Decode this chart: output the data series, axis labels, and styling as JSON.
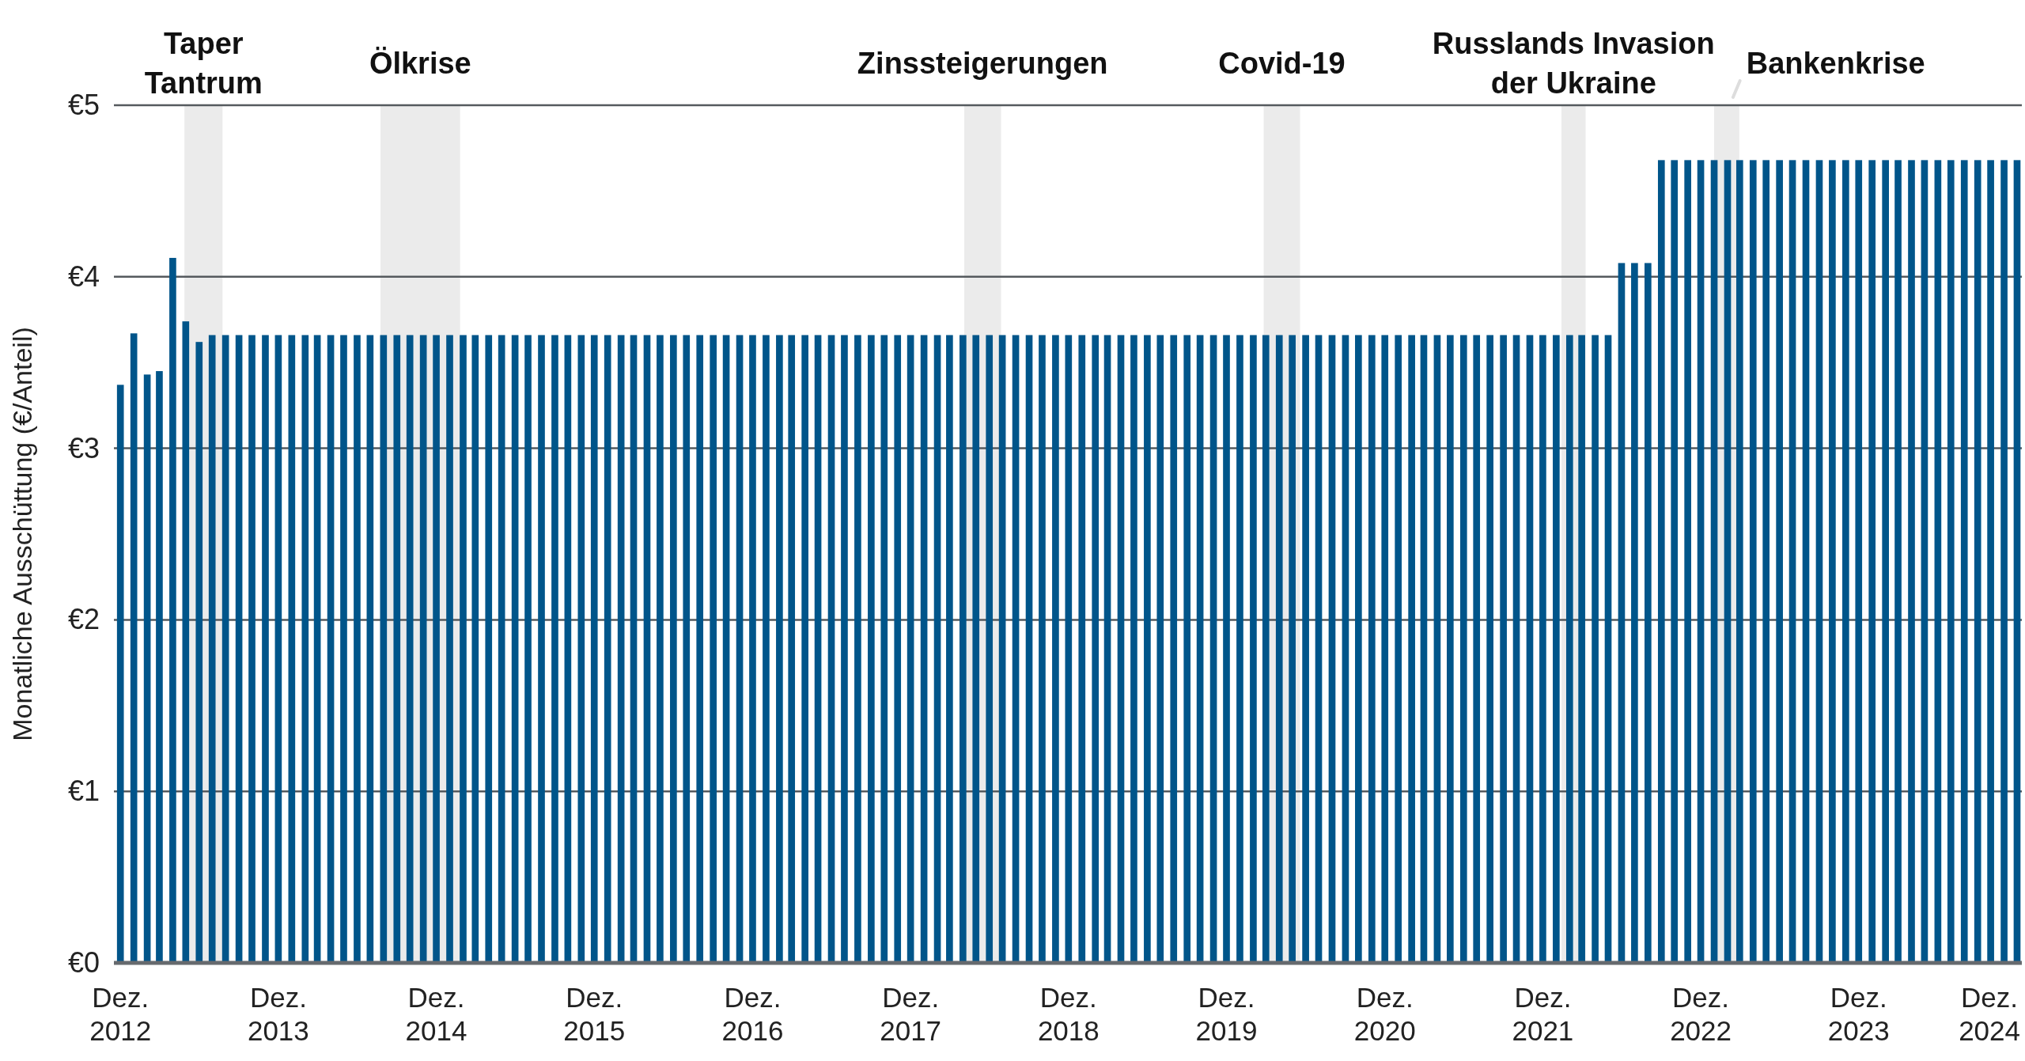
{
  "chart_data": {
    "type": "bar",
    "ylabel": "Monatliche Ausschüttung (€/Anteil)",
    "x": [
      "2012-12",
      "2013-01",
      "2013-02",
      "2013-03",
      "2013-04",
      "2013-05",
      "2013-06",
      "2013-07",
      "2013-08",
      "2013-09",
      "2013-10",
      "2013-11",
      "2013-12",
      "2014-01",
      "2014-02",
      "2014-03",
      "2014-04",
      "2014-05",
      "2014-06",
      "2014-07",
      "2014-08",
      "2014-09",
      "2014-10",
      "2014-11",
      "2014-12",
      "2015-01",
      "2015-02",
      "2015-03",
      "2015-04",
      "2015-05",
      "2015-06",
      "2015-07",
      "2015-08",
      "2015-09",
      "2015-10",
      "2015-11",
      "2015-12",
      "2016-01",
      "2016-02",
      "2016-03",
      "2016-04",
      "2016-05",
      "2016-06",
      "2016-07",
      "2016-08",
      "2016-09",
      "2016-10",
      "2016-11",
      "2016-12",
      "2017-01",
      "2017-02",
      "2017-03",
      "2017-04",
      "2017-05",
      "2017-06",
      "2017-07",
      "2017-08",
      "2017-09",
      "2017-10",
      "2017-11",
      "2017-12",
      "2018-01",
      "2018-02",
      "2018-03",
      "2018-04",
      "2018-05",
      "2018-06",
      "2018-07",
      "2018-08",
      "2018-09",
      "2018-10",
      "2018-11",
      "2018-12",
      "2019-01",
      "2019-02",
      "2019-03",
      "2019-04",
      "2019-05",
      "2019-06",
      "2019-07",
      "2019-08",
      "2019-09",
      "2019-10",
      "2019-11",
      "2019-12",
      "2020-01",
      "2020-02",
      "2020-03",
      "2020-04",
      "2020-05",
      "2020-06",
      "2020-07",
      "2020-08",
      "2020-09",
      "2020-10",
      "2020-11",
      "2020-12",
      "2021-01",
      "2021-02",
      "2021-03",
      "2021-04",
      "2021-05",
      "2021-06",
      "2021-07",
      "2021-08",
      "2021-09",
      "2021-10",
      "2021-11",
      "2021-12",
      "2022-01",
      "2022-02",
      "2022-03",
      "2022-04",
      "2022-05",
      "2022-06",
      "2022-07",
      "2022-08",
      "2022-09",
      "2022-10",
      "2022-11",
      "2022-12",
      "2023-01",
      "2023-02",
      "2023-03",
      "2023-04",
      "2023-05",
      "2023-06",
      "2023-07",
      "2023-08",
      "2023-09",
      "2023-10",
      "2023-11",
      "2023-12",
      "2024-01",
      "2024-02",
      "2024-03",
      "2024-04",
      "2024-05",
      "2024-06",
      "2024-07",
      "2024-08",
      "2024-09",
      "2024-10",
      "2024-11",
      "2024-12"
    ],
    "values": [
      3.37,
      3.67,
      3.43,
      3.45,
      4.11,
      3.74,
      3.62,
      3.66,
      3.66,
      3.66,
      3.66,
      3.66,
      3.66,
      3.66,
      3.66,
      3.66,
      3.66,
      3.66,
      3.66,
      3.66,
      3.66,
      3.66,
      3.66,
      3.66,
      3.66,
      3.66,
      3.66,
      3.66,
      3.66,
      3.66,
      3.66,
      3.66,
      3.66,
      3.66,
      3.66,
      3.66,
      3.66,
      3.66,
      3.66,
      3.66,
      3.66,
      3.66,
      3.66,
      3.66,
      3.66,
      3.66,
      3.66,
      3.66,
      3.66,
      3.66,
      3.66,
      3.66,
      3.66,
      3.66,
      3.66,
      3.66,
      3.66,
      3.66,
      3.66,
      3.66,
      3.66,
      3.66,
      3.66,
      3.66,
      3.66,
      3.66,
      3.66,
      3.66,
      3.66,
      3.66,
      3.66,
      3.66,
      3.66,
      3.66,
      3.66,
      3.66,
      3.66,
      3.66,
      3.66,
      3.66,
      3.66,
      3.66,
      3.66,
      3.66,
      3.66,
      3.66,
      3.66,
      3.66,
      3.66,
      3.66,
      3.66,
      3.66,
      3.66,
      3.66,
      3.66,
      3.66,
      3.66,
      3.66,
      3.66,
      3.66,
      3.66,
      3.66,
      3.66,
      3.66,
      3.66,
      3.66,
      3.66,
      3.66,
      3.66,
      3.66,
      3.66,
      3.66,
      3.66,
      3.66,
      4.08,
      4.08,
      4.08,
      4.68,
      4.68,
      4.68,
      4.68,
      4.68,
      4.68,
      4.68,
      4.68,
      4.68,
      4.68,
      4.68,
      4.68,
      4.68,
      4.68,
      4.68,
      4.68,
      4.68,
      4.68,
      4.68,
      4.68,
      4.68,
      4.68,
      4.68,
      4.68,
      4.68,
      4.68,
      4.68,
      4.68
    ],
    "color": "#00558a",
    "xlim": [
      "2012-11-16",
      "2024-12-12"
    ],
    "xticks": [
      {
        "value": "2012-12",
        "label": "Dez.\n2012"
      },
      {
        "value": "2013-12",
        "label": "Dez.\n2013"
      },
      {
        "value": "2014-12",
        "label": "Dez.\n2014"
      },
      {
        "value": "2015-12",
        "label": "Dez.\n2015"
      },
      {
        "value": "2016-12",
        "label": "Dez.\n2016"
      },
      {
        "value": "2017-12",
        "label": "Dez.\n2017"
      },
      {
        "value": "2018-12",
        "label": "Dez.\n2018"
      },
      {
        "value": "2019-12",
        "label": "Dez.\n2019"
      },
      {
        "value": "2020-12",
        "label": "Dez.\n2020"
      },
      {
        "value": "2021-12",
        "label": "Dez.\n2021"
      },
      {
        "value": "2022-12",
        "label": "Dez.\n2022"
      },
      {
        "value": "2023-12",
        "label": "Dez.\n2023"
      },
      {
        "value": "2024-12",
        "label": "Dez.\n2024"
      }
    ],
    "ylim": [
      0,
      5
    ],
    "yticks": [
      {
        "value": 0,
        "label": "€0"
      },
      {
        "value": 1,
        "label": "€1"
      },
      {
        "value": 2,
        "label": "€2"
      },
      {
        "value": 3,
        "label": "€3"
      },
      {
        "value": 4,
        "label": "€4"
      },
      {
        "value": 5,
        "label": "€5"
      }
    ],
    "grid": "y",
    "bands": [
      {
        "axis": "x",
        "from": "2013-04-28",
        "to": "2013-07-25",
        "label": "Taper\nTantrum",
        "color": "#ebebeb"
      },
      {
        "axis": "x",
        "from": "2014-07-25",
        "to": "2015-01-25",
        "label": "Ölkrise",
        "color": "#ebebeb"
      },
      {
        "axis": "x",
        "from": "2018-04-04",
        "to": "2018-06-28",
        "label": "Zinssteigerungen",
        "color": "#ebebeb"
      },
      {
        "axis": "x",
        "from": "2020-02-25",
        "to": "2020-05-19",
        "label": "Covid-19",
        "color": "#ebebeb"
      },
      {
        "axis": "x",
        "from": "2022-01-13",
        "to": "2022-03-10",
        "label": "Russlands Invasion\nder Ukraine",
        "color": "#ebebeb"
      },
      {
        "axis": "x",
        "from": "2023-01-01",
        "to": "2023-02-28",
        "label": "Bankenkrise",
        "color": "#ebebeb"
      }
    ]
  }
}
